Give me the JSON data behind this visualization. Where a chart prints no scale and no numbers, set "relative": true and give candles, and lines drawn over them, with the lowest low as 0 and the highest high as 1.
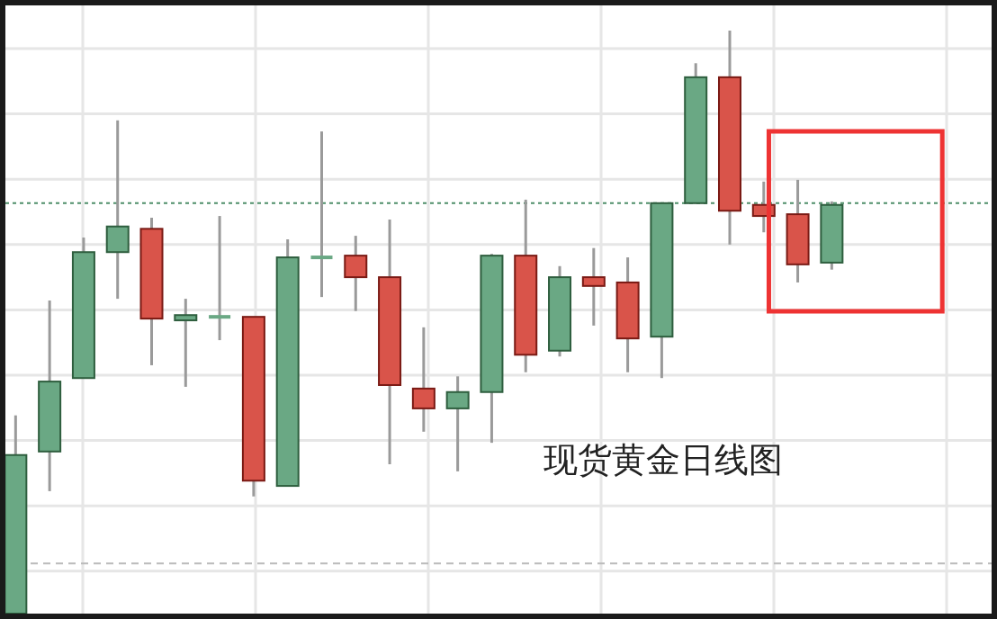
{
  "chart_data": {
    "type": "candlestick",
    "relative": true,
    "grid": true,
    "categories": [
      null,
      null,
      null,
      null,
      null,
      null,
      null,
      null,
      null,
      null,
      null,
      null,
      null,
      null,
      null,
      null,
      null,
      null,
      null,
      null,
      null,
      null,
      null,
      null,
      null
    ],
    "ohlc": [
      [
        0,
        0.34,
        0,
        0.272
      ],
      [
        0.278,
        0.537,
        0.21,
        0.398
      ],
      [
        0.404,
        0.645,
        0.404,
        0.62
      ],
      [
        0.62,
        0.846,
        0.54,
        0.664
      ],
      [
        0.66,
        0.679,
        0.426,
        0.506
      ],
      [
        0.503,
        0.54,
        0.389,
        0.512
      ],
      [
        0.509,
        0.682,
        0.469,
        0.509
      ],
      [
        0.509,
        0.509,
        0.201,
        0.228
      ],
      [
        0.219,
        0.642,
        0.219,
        0.611
      ],
      [
        0.611,
        0.827,
        0.543,
        0.611
      ],
      [
        0.614,
        0.648,
        0.519,
        0.577
      ],
      [
        0.577,
        0.676,
        0.256,
        0.392
      ],
      [
        0.386,
        0.491,
        0.312,
        0.352
      ],
      [
        0.352,
        0.407,
        0.244,
        0.38
      ],
      [
        0.38,
        0.617,
        0.293,
        0.614
      ],
      [
        0.614,
        0.71,
        0.414,
        0.444
      ],
      [
        0.451,
        0.596,
        0.441,
        0.577
      ],
      [
        0.577,
        0.627,
        0.494,
        0.562
      ],
      [
        0.568,
        0.611,
        0.414,
        0.472
      ],
      [
        0.475,
        0.704,
        0.404,
        0.704
      ],
      [
        0.704,
        0.944,
        0.704,
        0.92
      ],
      [
        0.92,
        1.0,
        0.633,
        0.691
      ],
      [
        0.701,
        0.741,
        0.654,
        0.682
      ],
      [
        0.685,
        0.744,
        0.568,
        0.599
      ],
      [
        0.602,
        0.707,
        0.59,
        0.701
      ]
    ],
    "colors": [
      "#6aa884",
      "#6aa884",
      "#6aa884",
      "#6aa884",
      "#d9544a",
      "#6aa884",
      "#6aa884",
      "#d9544a",
      "#6aa884",
      "#6aa884",
      "#d9544a",
      "#d9544a",
      "#d9544a",
      "#6aa884",
      "#6aa884",
      "#d9544a",
      "#6aa884",
      "#d9544a",
      "#d9544a",
      "#6aa884",
      "#6aa884",
      "#d9544a",
      "#d9544a",
      "#d9544a",
      "#6aa884"
    ],
    "ref_lines": [
      {
        "axis": "y",
        "value": 0.704,
        "color": "#4f8f6a",
        "line_style": "dotted"
      },
      {
        "axis": "y",
        "value": 0.086,
        "color": "#bbbbbb",
        "line_style": "dashed"
      }
    ],
    "annotations": [
      "现货黄金日线图"
    ]
  }
}
